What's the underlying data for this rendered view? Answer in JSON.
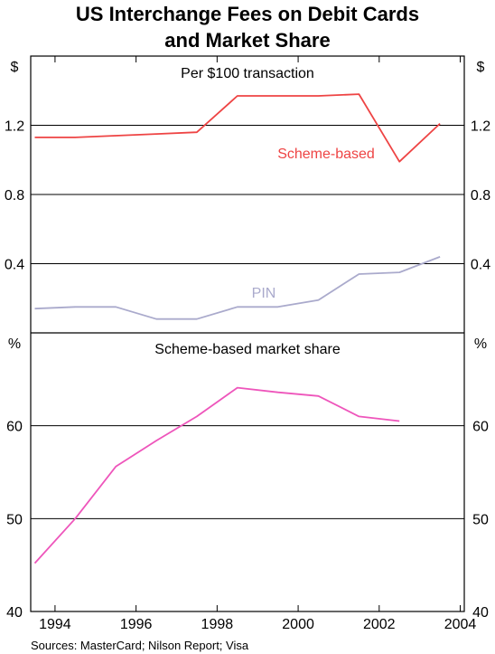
{
  "title_line1": "US Interchange Fees on Debit Cards",
  "title_line2": "and Market Share",
  "source": "Sources: MasterCard; Nilson Report; Visa",
  "colors": {
    "scheme": "#ee4444",
    "pin": "#aaaacc",
    "share": "#ee55bb",
    "grid": "#000000"
  },
  "chart_data": [
    {
      "type": "line",
      "title": "Per $100 transaction",
      "unit": "$",
      "ylim": [
        0,
        1.6
      ],
      "yticks": [
        0.4,
        0.8,
        1.2
      ],
      "ytick_labels": [
        "0.4",
        "0.8",
        "1.2"
      ],
      "series": [
        {
          "name": "Scheme-based",
          "x": [
            1993.5,
            1994.5,
            1995.5,
            1996.5,
            1997.5,
            1998.5,
            1999.5,
            2000.5,
            2001.5,
            2002.5,
            2003.5
          ],
          "values": [
            1.13,
            1.13,
            1.14,
            1.15,
            1.16,
            1.37,
            1.37,
            1.37,
            1.38,
            0.99,
            1.21
          ]
        },
        {
          "name": "PIN",
          "x": [
            1993.5,
            1994.5,
            1995.5,
            1996.5,
            1997.5,
            1998.5,
            1999.5,
            2000.5,
            2001.5,
            2002.5,
            2003.5
          ],
          "values": [
            0.14,
            0.15,
            0.15,
            0.08,
            0.08,
            0.15,
            0.15,
            0.19,
            0.34,
            0.35,
            0.44
          ]
        }
      ]
    },
    {
      "type": "line",
      "title": "Scheme-based market share",
      "unit": "%",
      "ylim": [
        40,
        70
      ],
      "yticks": [
        40,
        50,
        60
      ],
      "ytick_labels": [
        "40",
        "50",
        "60"
      ],
      "series": [
        {
          "name": "",
          "x": [
            1993.5,
            1994.5,
            1995.5,
            1996.5,
            1997.5,
            1998.5,
            1999.5,
            2000.5,
            2001.5,
            2002.5
          ],
          "values": [
            45.2,
            50.0,
            55.6,
            58.4,
            61.0,
            64.1,
            63.6,
            63.2,
            61.0,
            60.5
          ]
        }
      ]
    }
  ],
  "x_axis": {
    "xlim": [
      1993.4,
      2004.1
    ],
    "ticks": [
      1994,
      1996,
      1998,
      2000,
      2002,
      2004
    ],
    "tick_labels": [
      "1994",
      "1996",
      "1998",
      "2000",
      "2002",
      "2004"
    ]
  }
}
